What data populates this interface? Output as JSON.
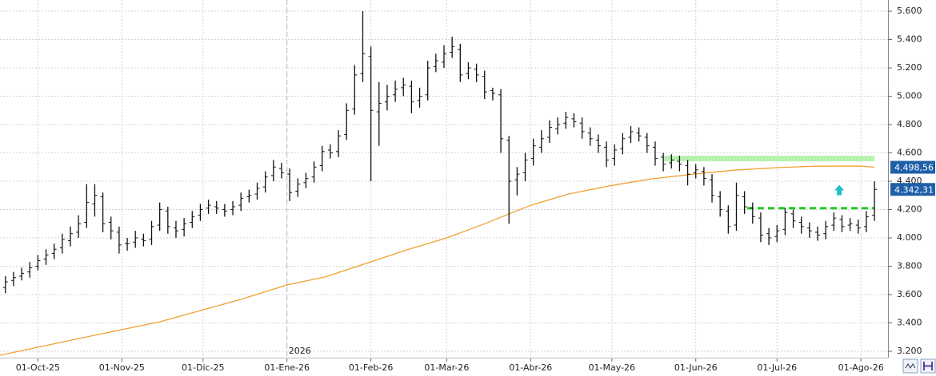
{
  "chart_data": {
    "type": "ohlc",
    "xlim": [
      "2025-09-17",
      "2026-08-11"
    ],
    "ylim": [
      3155,
      5679
    ],
    "grid": true,
    "yticks": [
      {
        "value": 3200,
        "label": "3.200"
      },
      {
        "value": 3400,
        "label": "3.400"
      },
      {
        "value": 3600,
        "label": "3.600"
      },
      {
        "value": 3800,
        "label": "3.800"
      },
      {
        "value": 4000,
        "label": "4.000"
      },
      {
        "value": 4200,
        "label": "4.200"
      },
      {
        "value": 4400,
        "label": "4.400"
      },
      {
        "value": 4600,
        "label": "4.600"
      },
      {
        "value": 4800,
        "label": "4.800"
      },
      {
        "value": 5000,
        "label": "5.000"
      },
      {
        "value": 5200,
        "label": "5.200"
      },
      {
        "value": 5400,
        "label": "5.400"
      },
      {
        "value": 5600,
        "label": "5.600"
      }
    ],
    "xticks": [
      {
        "value": "2025-10-01",
        "label": "01-Oct-25"
      },
      {
        "value": "2025-11-01",
        "label": "01-Nov-25"
      },
      {
        "value": "2025-12-01",
        "label": "01-Dic-25"
      },
      {
        "value": "2026-01-01",
        "label": "01-Ene-26"
      },
      {
        "value": "2026-02-01",
        "label": "01-Feb-26"
      },
      {
        "value": "2026-03-01",
        "label": "01-Mar-26"
      },
      {
        "value": "2026-04-01",
        "label": "01-Abr-26"
      },
      {
        "value": "2026-05-01",
        "label": "01-May-26"
      },
      {
        "value": "2026-06-01",
        "label": "01-Jun-26"
      },
      {
        "value": "2026-07-01",
        "label": "01-Jul-26"
      },
      {
        "value": "2026-08-01",
        "label": "01-Ago-26"
      }
    ],
    "year_marker": {
      "value": "2026-01-01",
      "label": "2026"
    },
    "ohlc": {
      "color": "#111111",
      "x": [
        "2025-09-19",
        "2025-09-22",
        "2025-09-25",
        "2025-09-28",
        "2025-10-01",
        "2025-10-04",
        "2025-10-07",
        "2025-10-10",
        "2025-10-13",
        "2025-10-16",
        "2025-10-19",
        "2025-10-22",
        "2025-10-25",
        "2025-10-28",
        "2025-10-31",
        "2025-11-03",
        "2025-11-06",
        "2025-11-09",
        "2025-11-12",
        "2025-11-15",
        "2025-11-18",
        "2025-11-21",
        "2025-11-24",
        "2025-11-27",
        "2025-11-30",
        "2025-12-03",
        "2025-12-06",
        "2025-12-09",
        "2025-12-12",
        "2025-12-15",
        "2025-12-18",
        "2025-12-21",
        "2025-12-24",
        "2025-12-27",
        "2025-12-30",
        "2026-01-02",
        "2026-01-05",
        "2026-01-08",
        "2026-01-11",
        "2026-01-14",
        "2026-01-17",
        "2026-01-20",
        "2026-01-23",
        "2026-01-26",
        "2026-01-29",
        "2026-02-01",
        "2026-02-04",
        "2026-02-07",
        "2026-02-10",
        "2026-02-13",
        "2026-02-16",
        "2026-02-19",
        "2026-02-22",
        "2026-02-25",
        "2026-02-28",
        "2026-03-03",
        "2026-03-06",
        "2026-03-09",
        "2026-03-12",
        "2026-03-15",
        "2026-03-18",
        "2026-03-21",
        "2026-03-24",
        "2026-03-27",
        "2026-03-30",
        "2026-04-02",
        "2026-04-05",
        "2026-04-08",
        "2026-04-11",
        "2026-04-14",
        "2026-04-17",
        "2026-04-20",
        "2026-04-23",
        "2026-04-26",
        "2026-04-29",
        "2026-05-02",
        "2026-05-05",
        "2026-05-08",
        "2026-05-11",
        "2026-05-14",
        "2026-05-17",
        "2026-05-20",
        "2026-05-23",
        "2026-05-26",
        "2026-05-29",
        "2026-06-01",
        "2026-06-04",
        "2026-06-07",
        "2026-06-10",
        "2026-06-13",
        "2026-06-16",
        "2026-06-19",
        "2026-06-22",
        "2026-06-25",
        "2026-06-28",
        "2026-07-01",
        "2026-07-04",
        "2026-07-07",
        "2026-07-10",
        "2026-07-13",
        "2026-07-16",
        "2026-07-19",
        "2026-07-22",
        "2026-07-25",
        "2026-07-28",
        "2026-07-31",
        "2026-08-03",
        "2026-08-06"
      ],
      "open": [
        3650,
        3700,
        3730,
        3760,
        3800,
        3850,
        3890,
        3930,
        3980,
        4040,
        4110,
        4240,
        4290,
        4110,
        4040,
        3960,
        3970,
        3990,
        3990,
        4090,
        4190,
        4070,
        4060,
        4110,
        4160,
        4210,
        4220,
        4200,
        4200,
        4230,
        4290,
        4310,
        4360,
        4440,
        4490,
        4450,
        4330,
        4390,
        4430,
        4510,
        4620,
        4610,
        4730,
        4910,
        5160,
        5280,
        4890,
        4960,
        5010,
        5060,
        5070,
        4970,
        5010,
        5210,
        5240,
        5310,
        5330,
        5160,
        5190,
        5140,
        5040,
        5010,
        4690,
        4410,
        4460,
        4560,
        4640,
        4710,
        4770,
        4810,
        4840,
        4810,
        4740,
        4690,
        4640,
        4560,
        4630,
        4710,
        4740,
        4710,
        4640,
        4570,
        4530,
        4540,
        4510,
        4460,
        4470,
        4410,
        4290,
        4190,
        4090,
        4290,
        4210,
        4140,
        4030,
        4010,
        4060,
        4170,
        4110,
        4070,
        4040,
        4030,
        4090,
        4130,
        4090,
        4090,
        4080,
        4160
      ],
      "high": [
        3730,
        3760,
        3790,
        3830,
        3880,
        3920,
        3960,
        4030,
        4080,
        4160,
        4380,
        4380,
        4320,
        4150,
        4080,
        4000,
        4050,
        4030,
        4120,
        4250,
        4220,
        4120,
        4140,
        4190,
        4240,
        4270,
        4260,
        4240,
        4260,
        4320,
        4340,
        4390,
        4470,
        4550,
        4530,
        4490,
        4420,
        4460,
        4540,
        4650,
        4660,
        4760,
        4950,
        5220,
        5600,
        5350,
        5100,
        5080,
        5110,
        5130,
        5110,
        5060,
        5250,
        5300,
        5360,
        5420,
        5370,
        5240,
        5230,
        5180,
        5060,
        5050,
        4720,
        4500,
        4600,
        4700,
        4760,
        4830,
        4850,
        4890,
        4880,
        4850,
        4780,
        4730,
        4680,
        4660,
        4740,
        4790,
        4780,
        4740,
        4680,
        4600,
        4590,
        4580,
        4550,
        4520,
        4500,
        4450,
        4330,
        4230,
        4390,
        4330,
        4250,
        4180,
        4070,
        4090,
        4210,
        4200,
        4150,
        4110,
        4080,
        4120,
        4180,
        4160,
        4140,
        4130,
        4190,
        4400
      ],
      "low": [
        3610,
        3660,
        3700,
        3720,
        3770,
        3810,
        3850,
        3890,
        3940,
        4000,
        4070,
        4150,
        4040,
        3990,
        3890,
        3910,
        3930,
        3940,
        3950,
        4050,
        4030,
        4000,
        4010,
        4070,
        4120,
        4170,
        4170,
        4150,
        4160,
        4190,
        4250,
        4270,
        4320,
        4400,
        4420,
        4260,
        4290,
        4350,
        4390,
        4470,
        4560,
        4570,
        4690,
        4870,
        5100,
        4400,
        4650,
        4900,
        4960,
        5000,
        4880,
        4920,
        4970,
        5170,
        5200,
        5270,
        5100,
        5120,
        5100,
        4980,
        4970,
        4600,
        4100,
        4300,
        4400,
        4510,
        4600,
        4670,
        4730,
        4770,
        4780,
        4700,
        4650,
        4600,
        4500,
        4510,
        4590,
        4670,
        4680,
        4600,
        4510,
        4470,
        4490,
        4470,
        4370,
        4420,
        4370,
        4250,
        4150,
        4030,
        4050,
        4170,
        4100,
        3970,
        3950,
        3970,
        4020,
        4070,
        4030,
        4000,
        3980,
        3990,
        4050,
        4040,
        4050,
        4030,
        4040,
        4120
      ],
      "close": [
        3690,
        3720,
        3750,
        3790,
        3840,
        3880,
        3920,
        3990,
        4030,
        4100,
        4250,
        4300,
        4100,
        4050,
        3950,
        3960,
        4000,
        3980,
        4080,
        4200,
        4080,
        4050,
        4100,
        4150,
        4200,
        4230,
        4210,
        4190,
        4220,
        4280,
        4300,
        4350,
        4430,
        4500,
        4460,
        4320,
        4380,
        4420,
        4500,
        4610,
        4600,
        4720,
        4900,
        5150,
        5300,
        4900,
        4950,
        5000,
        5050,
        5080,
        4960,
        5000,
        5200,
        5250,
        5300,
        5350,
        5150,
        5200,
        5150,
        5030,
        5020,
        4700,
        4400,
        4450,
        4550,
        4650,
        4700,
        4780,
        4800,
        4850,
        4820,
        4750,
        4700,
        4650,
        4550,
        4620,
        4700,
        4750,
        4720,
        4650,
        4560,
        4520,
        4550,
        4520,
        4450,
        4480,
        4420,
        4300,
        4200,
        4080,
        4300,
        4220,
        4150,
        4020,
        4000,
        4050,
        4180,
        4120,
        4080,
        4050,
        4020,
        4080,
        4140,
        4080,
        4100,
        4070,
        4150,
        4342.31
      ],
      "last_label": "4.342,31",
      "label_color": "#1f5fa8"
    },
    "ma": {
      "color": "#f0a030",
      "x": [
        "2025-09-17",
        "2025-10-15",
        "2025-11-15",
        "2025-12-15",
        "2026-01-01",
        "2026-01-15",
        "2026-02-01",
        "2026-02-15",
        "2026-03-01",
        "2026-03-15",
        "2026-04-01",
        "2026-04-15",
        "2026-05-01",
        "2026-05-15",
        "2026-06-01",
        "2026-06-15",
        "2026-07-01",
        "2026-07-15",
        "2026-08-01",
        "2026-08-06"
      ],
      "values": [
        3172,
        3285,
        3408,
        3566,
        3668,
        3724,
        3831,
        3920,
        4000,
        4100,
        4230,
        4310,
        4370,
        4415,
        4452,
        4478,
        4496,
        4506,
        4507,
        4498.56
      ],
      "last_label": "4.498,56",
      "label_color": "#1f5fa8"
    },
    "levels": [
      {
        "value": 4560,
        "from": "2026-05-20",
        "to": "2026-08-06",
        "style": "band",
        "color": "#b8f0b0"
      },
      {
        "value": 4210,
        "from": "2026-06-20",
        "to": "2026-08-06",
        "style": "dashed",
        "color": "#22cc22"
      }
    ],
    "arrow": {
      "x": "2026-07-24",
      "value": 4330,
      "color": "#22c0c8"
    }
  }
}
